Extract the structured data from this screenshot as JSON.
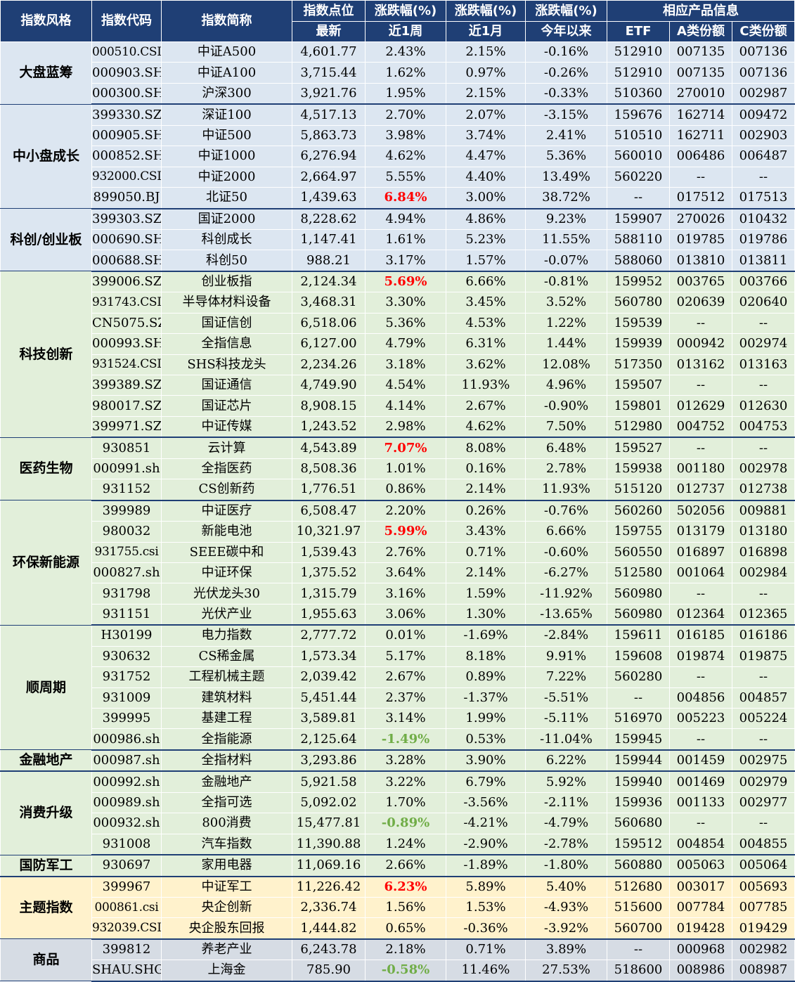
{
  "header": {
    "style": "指数风格",
    "code": "指数代码",
    "name": "指数简称",
    "points": "指数点位",
    "change1": "涨跌幅(%)",
    "change2": "涨跌幅(%)",
    "change3": "涨跌幅(%)",
    "product": "相应产品信息",
    "latest": "最新",
    "week": "近1周",
    "month": "近1月",
    "ytd": "今年以来",
    "etf": "ETF",
    "classA": "A类份额",
    "classC": "C类份额"
  },
  "colors": {
    "header_bg": "#1f3f75",
    "blue_group": "#dce6f1",
    "green_group": "#e2efda",
    "yellow_group": "#fff2cc",
    "gray_group": "#d6dce4",
    "up_highlight": "#ff0000",
    "down_highlight": "#70ad47"
  },
  "groups": [
    {
      "name": "大盘蓝筹",
      "color": "blue",
      "rows": [
        {
          "code": "000510.CSI",
          "name": "中证A500",
          "points": "4,601.77",
          "week": "2.43%",
          "month": "2.15%",
          "ytd": "-0.16%",
          "etf": "512910",
          "a": "007135",
          "c": "007136"
        },
        {
          "code": "000903.SH",
          "name": "中证A100",
          "points": "3,715.44",
          "week": "1.62%",
          "month": "0.97%",
          "ytd": "-0.26%",
          "etf": "512910",
          "a": "007135",
          "c": "007136"
        },
        {
          "code": "000300.SH",
          "name": "沪深300",
          "points": "3,921.76",
          "week": "1.95%",
          "month": "2.15%",
          "ytd": "-0.33%",
          "etf": "510360",
          "a": "270010",
          "c": "002987"
        }
      ]
    },
    {
      "name": "中小盘成长",
      "color": "blue",
      "rows": [
        {
          "code": "399330.SZ",
          "name": "深证100",
          "points": "4,517.13",
          "week": "2.70%",
          "month": "2.07%",
          "ytd": "-3.15%",
          "etf": "159676",
          "a": "162714",
          "c": "009472"
        },
        {
          "code": "000905.SH",
          "name": "中证500",
          "points": "5,863.73",
          "week": "3.98%",
          "month": "3.74%",
          "ytd": "2.41%",
          "etf": "510510",
          "a": "162711",
          "c": "002903"
        },
        {
          "code": "000852.SH",
          "name": "中证1000",
          "points": "6,276.94",
          "week": "4.62%",
          "month": "4.47%",
          "ytd": "5.36%",
          "etf": "560010",
          "a": "006486",
          "c": "006487"
        },
        {
          "code": "932000.CSI",
          "name": "中证2000",
          "points": "2,664.97",
          "week": "5.55%",
          "month": "4.40%",
          "ytd": "13.49%",
          "etf": "560220",
          "a": "--",
          "c": "--"
        },
        {
          "code": "899050.BJ",
          "name": "北证50",
          "points": "1,439.63",
          "week": "6.84%",
          "hl": "red",
          "month": "3.00%",
          "ytd": "38.72%",
          "etf": "--",
          "a": "017512",
          "c": "017513"
        }
      ]
    },
    {
      "name": "科创/创业板",
      "color": "blue",
      "rows": [
        {
          "code": "399303.SZ",
          "name": "国证2000",
          "points": "8,228.62",
          "week": "4.94%",
          "month": "4.86%",
          "ytd": "9.23%",
          "etf": "159907",
          "a": "270026",
          "c": "010432"
        },
        {
          "code": "000690.SH",
          "name": "科创成长",
          "points": "1,147.41",
          "week": "1.61%",
          "month": "5.23%",
          "ytd": "11.55%",
          "etf": "588110",
          "a": "019785",
          "c": "019786"
        },
        {
          "code": "000688.SH",
          "name": "科创50",
          "points": "988.21",
          "week": "3.17%",
          "month": "1.57%",
          "ytd": "-0.07%",
          "etf": "588060",
          "a": "013810",
          "c": "013811"
        }
      ]
    },
    {
      "name": "科技创新",
      "color": "green",
      "rows": [
        {
          "code": "399006.SZ",
          "name": "创业板指",
          "points": "2,124.34",
          "week": "5.69%",
          "hl": "red",
          "month": "6.66%",
          "ytd": "-0.81%",
          "etf": "159952",
          "a": "003765",
          "c": "003766"
        },
        {
          "code": "931743.CSI",
          "name": "半导体材料设备",
          "points": "3,468.31",
          "week": "3.30%",
          "month": "3.45%",
          "ytd": "3.52%",
          "etf": "560780",
          "a": "020639",
          "c": "020640"
        },
        {
          "code": "CN5075.SZ",
          "name": "国证信创",
          "points": "6,518.06",
          "week": "5.36%",
          "month": "4.53%",
          "ytd": "1.22%",
          "etf": "159539",
          "a": "--",
          "c": "--"
        },
        {
          "code": "000993.SH",
          "name": "全指信息",
          "points": "6,127.00",
          "week": "4.79%",
          "month": "6.31%",
          "ytd": "1.44%",
          "etf": "159939",
          "a": "000942",
          "c": "002974"
        },
        {
          "code": "931524.CSI",
          "name": "SHS科技龙头",
          "points": "2,234.26",
          "week": "3.18%",
          "month": "3.62%",
          "ytd": "12.08%",
          "etf": "517350",
          "a": "013162",
          "c": "013163"
        },
        {
          "code": "399389.SZ",
          "name": "国证通信",
          "points": "4,749.90",
          "week": "4.54%",
          "month": "11.93%",
          "ytd": "4.96%",
          "etf": "159507",
          "a": "--",
          "c": "--"
        },
        {
          "code": "980017.SZ",
          "name": "国证芯片",
          "points": "8,908.15",
          "week": "4.14%",
          "month": "2.67%",
          "ytd": "-0.90%",
          "etf": "159801",
          "a": "012629",
          "c": "012630"
        },
        {
          "code": "399971.SZ",
          "name": "中证传媒",
          "points": "1,243.52",
          "week": "2.98%",
          "month": "4.62%",
          "ytd": "7.50%",
          "etf": "512980",
          "a": "004752",
          "c": "004753"
        }
      ]
    },
    {
      "name": "医药生物",
      "color": "green",
      "rows": [
        {
          "code": "930851",
          "name": "云计算",
          "points": "4,543.89",
          "week": "7.07%",
          "hl": "red",
          "month": "8.08%",
          "ytd": "6.48%",
          "etf": "159527",
          "a": "--",
          "c": "--"
        },
        {
          "code": "000991.sh",
          "name": "全指医药",
          "points": "8,508.36",
          "week": "1.01%",
          "month": "0.16%",
          "ytd": "2.78%",
          "etf": "159938",
          "a": "001180",
          "c": "002978"
        },
        {
          "code": "931152",
          "name": "CS创新药",
          "points": "1,776.51",
          "week": "0.86%",
          "month": "2.14%",
          "ytd": "11.93%",
          "etf": "515120",
          "a": "012737",
          "c": "012738"
        }
      ]
    },
    {
      "name": "环保新能源",
      "color": "green",
      "rows": [
        {
          "code": "399989",
          "name": "中证医疗",
          "points": "6,508.47",
          "week": "2.20%",
          "month": "0.26%",
          "ytd": "-0.76%",
          "etf": "560260",
          "a": "502056",
          "c": "009881"
        },
        {
          "code": "980032",
          "name": "新能电池",
          "points": "10,321.97",
          "week": "5.99%",
          "hl": "red",
          "month": "3.43%",
          "ytd": "6.66%",
          "etf": "159755",
          "a": "013179",
          "c": "013180"
        },
        {
          "code": "931755.csi",
          "name": "SEEE碳中和",
          "points": "1,539.43",
          "week": "2.76%",
          "month": "0.71%",
          "ytd": "-0.60%",
          "etf": "560550",
          "a": "016897",
          "c": "016898"
        },
        {
          "code": "000827.sh",
          "name": "中证环保",
          "points": "1,375.52",
          "week": "3.64%",
          "month": "2.14%",
          "ytd": "-6.27%",
          "etf": "512580",
          "a": "001064",
          "c": "002984"
        },
        {
          "code": "931798",
          "name": "光伏龙头30",
          "points": "1,315.79",
          "week": "3.16%",
          "month": "1.59%",
          "ytd": "-11.92%",
          "etf": "560980",
          "a": "--",
          "c": "--"
        },
        {
          "code": "931151",
          "name": "光伏产业",
          "points": "1,955.63",
          "week": "3.06%",
          "month": "1.30%",
          "ytd": "-13.65%",
          "etf": "560980",
          "a": "012364",
          "c": "012365"
        }
      ]
    },
    {
      "name": "顺周期",
      "color": "green",
      "rows": [
        {
          "code": "H30199",
          "name": "电力指数",
          "points": "2,777.72",
          "week": "0.01%",
          "month": "-1.69%",
          "ytd": "-2.84%",
          "etf": "159611",
          "a": "016185",
          "c": "016186"
        },
        {
          "code": "930632",
          "name": "CS稀金属",
          "points": "1,573.34",
          "week": "5.17%",
          "month": "8.18%",
          "ytd": "9.91%",
          "etf": "159608",
          "a": "019874",
          "c": "019875"
        },
        {
          "code": "931752",
          "name": "工程机械主题",
          "points": "2,039.42",
          "week": "2.67%",
          "month": "0.89%",
          "ytd": "7.22%",
          "etf": "560280",
          "a": "--",
          "c": "--"
        },
        {
          "code": "931009",
          "name": "建筑材料",
          "points": "5,451.44",
          "week": "2.37%",
          "month": "-1.37%",
          "ytd": "-5.51%",
          "etf": "--",
          "a": "004856",
          "c": "004857"
        },
        {
          "code": "399995",
          "name": "基建工程",
          "points": "3,589.81",
          "week": "3.14%",
          "month": "1.99%",
          "ytd": "-5.11%",
          "etf": "516970",
          "a": "005223",
          "c": "005224"
        },
        {
          "code": "000986.sh",
          "name": "全指能源",
          "points": "2,125.64",
          "week": "-1.49%",
          "hl": "green",
          "month": "0.53%",
          "ytd": "-11.04%",
          "etf": "159945",
          "a": "--",
          "c": "--"
        }
      ]
    },
    {
      "name": "金融地产",
      "color": "green",
      "rows": [
        {
          "code": "000987.sh",
          "name": "全指材料",
          "points": "3,293.86",
          "week": "3.28%",
          "month": "3.90%",
          "ytd": "6.22%",
          "etf": "159944",
          "a": "001459",
          "c": "002975"
        }
      ]
    },
    {
      "name": "消费升级",
      "color": "green",
      "rows": [
        {
          "code": "000992.sh",
          "name": "金融地产",
          "points": "5,921.58",
          "week": "3.22%",
          "month": "6.79%",
          "ytd": "5.92%",
          "etf": "159940",
          "a": "001469",
          "c": "002979"
        },
        {
          "code": "000989.sh",
          "name": "全指可选",
          "points": "5,092.02",
          "week": "1.70%",
          "month": "-3.56%",
          "ytd": "-2.11%",
          "etf": "159936",
          "a": "001133",
          "c": "002977"
        },
        {
          "code": "000932.sh",
          "name": "800消费",
          "points": "15,477.81",
          "week": "-0.89%",
          "hl": "green",
          "month": "-4.21%",
          "ytd": "-4.79%",
          "etf": "560680",
          "a": "--",
          "c": "--"
        },
        {
          "code": "931008",
          "name": "汽车指数",
          "points": "11,390.88",
          "week": "1.24%",
          "month": "-2.90%",
          "ytd": "-2.78%",
          "etf": "159512",
          "a": "004854",
          "c": "004855"
        }
      ]
    },
    {
      "name": "国防军工",
      "color": "green",
      "rows": [
        {
          "code": "930697",
          "name": "家用电器",
          "points": "11,069.16",
          "week": "2.66%",
          "month": "-1.89%",
          "ytd": "-1.80%",
          "etf": "560880",
          "a": "005063",
          "c": "005064"
        }
      ]
    },
    {
      "name": "主题指数",
      "color": "yellow",
      "rows": [
        {
          "code": "399967",
          "name": "中证军工",
          "points": "11,226.42",
          "week": "6.23%",
          "hl": "red",
          "month": "5.89%",
          "ytd": "5.40%",
          "etf": "512680",
          "a": "003017",
          "c": "005693"
        },
        {
          "code": "000861.csi",
          "name": "央企创新",
          "points": "2,336.74",
          "week": "1.56%",
          "month": "1.53%",
          "ytd": "-4.93%",
          "etf": "515600",
          "a": "007784",
          "c": "007785"
        },
        {
          "code": "932039.CSI",
          "name": "央企股东回报",
          "points": "1,444.82",
          "week": "0.65%",
          "month": "-0.36%",
          "ytd": "-3.92%",
          "etf": "560700",
          "a": "019428",
          "c": "019429"
        }
      ]
    },
    {
      "name": "商品",
      "color": "gray",
      "rows": [
        {
          "code": "399812",
          "name": "养老产业",
          "points": "6,243.78",
          "week": "2.18%",
          "month": "0.71%",
          "ytd": "3.89%",
          "etf": "--",
          "a": "000968",
          "c": "002982"
        },
        {
          "code": "SHAU.SHG",
          "name": "上海金",
          "points": "785.90",
          "week": "-0.58%",
          "hl": "green",
          "month": "11.46%",
          "ytd": "27.53%",
          "etf": "518600",
          "a": "008986",
          "c": "008987"
        }
      ]
    }
  ]
}
